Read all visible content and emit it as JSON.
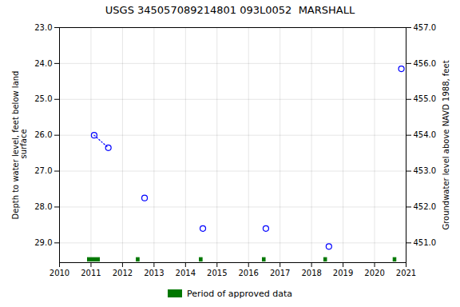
{
  "chart_data": {
    "type": "scatter",
    "title": "USGS 345057089214801 093L0052  MARSHALL",
    "ylabel": "Depth to water level, feet below land\n surface",
    "y2label": "Groundwater level above NAVD 1988, feet",
    "xlim": [
      2010,
      2021
    ],
    "xticks": [
      2010,
      2011,
      2012,
      2013,
      2014,
      2015,
      2016,
      2017,
      2018,
      2019,
      2020,
      2021
    ],
    "ylim": [
      29.55,
      23.0
    ],
    "yticks": [
      {
        "value": 23.0,
        "label": "23.0"
      },
      {
        "value": 24.0,
        "label": "24.0"
      },
      {
        "value": 25.0,
        "label": "25.0"
      },
      {
        "value": 26.0,
        "label": "26.0"
      },
      {
        "value": 27.0,
        "label": "27.0"
      },
      {
        "value": 28.0,
        "label": "28.0"
      },
      {
        "value": 29.0,
        "label": "29.0"
      }
    ],
    "y2lim": [
      450.45,
      457.0
    ],
    "y2ticks": [
      {
        "value": 457.0,
        "label": "457.0"
      },
      {
        "value": 456.0,
        "label": "456.0"
      },
      {
        "value": 455.0,
        "label": "455.0"
      },
      {
        "value": 454.0,
        "label": "454.0"
      },
      {
        "value": 453.0,
        "label": "453.0"
      },
      {
        "value": 452.0,
        "label": "452.0"
      },
      {
        "value": 451.0,
        "label": "451.0"
      }
    ],
    "grid": true,
    "legend": "bottom",
    "series": [
      {
        "type": "scatter",
        "marker": "open_circle",
        "color": "#0000ff",
        "x": [
          2011.1,
          2011.55,
          2012.7,
          2014.55,
          2016.55,
          2018.55,
          2020.85
        ],
        "values": [
          26.0,
          26.35,
          27.75,
          28.6,
          28.6,
          29.1,
          24.15
        ]
      },
      {
        "type": "line",
        "line_style": "dotted",
        "color": "#0000ff",
        "x": [
          2011.1,
          2011.55
        ],
        "values": [
          26.0,
          26.35
        ]
      },
      {
        "type": "bar",
        "orientation": "horizontal",
        "name": "Period of approved data",
        "color": "#007700",
        "x": [
          2010.9,
          2012.45,
          2014.45,
          2016.45,
          2018.4,
          2020.6
        ],
        "width": [
          0.38,
          0.09,
          0.09,
          0.09,
          0.09,
          0.09
        ],
        "y": 29.47,
        "height": 0.1
      }
    ]
  }
}
